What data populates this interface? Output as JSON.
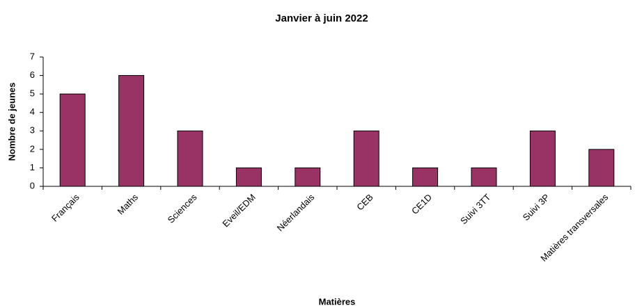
{
  "chart_data": {
    "type": "bar",
    "title": "Janvier à juin 2022",
    "x_label": "Matières",
    "y_label": "Nombre de jeunes",
    "categories": [
      "Français",
      "Maths",
      "Sciences",
      "Eveil/EDM",
      "Néerlandais",
      "CEB",
      "CE1D",
      "Suivi 3TT",
      "Suivi 3P",
      "Matières transversales"
    ],
    "values": [
      5,
      6,
      3,
      1,
      1,
      3,
      1,
      1,
      3,
      2
    ],
    "color": "#993366",
    "ylim": [
      0,
      7
    ],
    "yticks": [
      0,
      1,
      2,
      3,
      4,
      5,
      6,
      7
    ],
    "grid": false
  }
}
